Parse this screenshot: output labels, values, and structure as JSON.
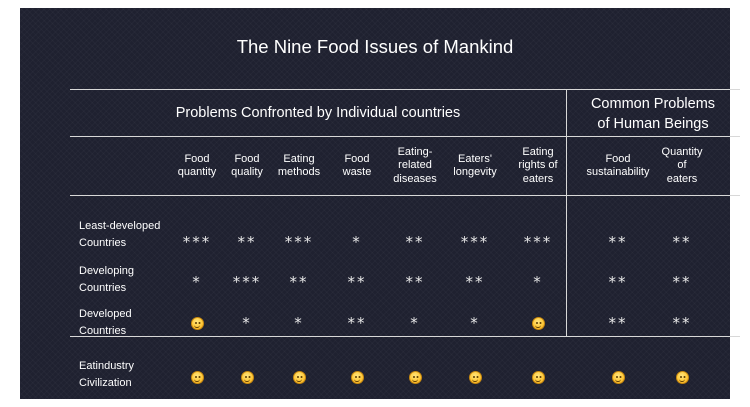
{
  "title": "The Nine Food Issues of Mankind",
  "groups": {
    "individual": "Problems Confronted by Individual countries",
    "common_line1": "Common Problems",
    "common_line2": "of Human Beings"
  },
  "columns": [
    [
      "Food",
      "quantity"
    ],
    [
      "Food",
      "quality"
    ],
    [
      "Eating",
      "methods"
    ],
    [
      "Food",
      "waste"
    ],
    [
      "Eating-",
      "related",
      "diseases"
    ],
    [
      "Eaters'",
      "longevity"
    ],
    [
      "Eating",
      "rights of",
      "eaters"
    ],
    [
      "Food",
      "sustainability"
    ],
    [
      "Quantity",
      "of",
      "eaters"
    ]
  ],
  "rows": [
    {
      "label": [
        "Least-developed",
        "Countries"
      ],
      "cells": [
        "***",
        "**",
        "***",
        "*",
        "**",
        "***",
        "***",
        "**",
        "**"
      ]
    },
    {
      "label": [
        "Developing",
        "Countries"
      ],
      "cells": [
        "*",
        "***",
        "**",
        "**",
        "**",
        "**",
        "*",
        "**",
        "**"
      ]
    },
    {
      "label": [
        "Developed",
        "Countries"
      ],
      "cells": [
        "smiley",
        "*",
        "*",
        "**",
        "*",
        "*",
        "smiley",
        "**",
        "**"
      ]
    },
    {
      "label": [
        "Eatindustry",
        "Civilization"
      ],
      "cells": [
        "smiley",
        "smiley",
        "smiley",
        "smiley",
        "smiley",
        "smiley",
        "smiley",
        "smiley",
        "smiley"
      ]
    }
  ],
  "icons": {
    "good": "smiley-face-icon"
  }
}
